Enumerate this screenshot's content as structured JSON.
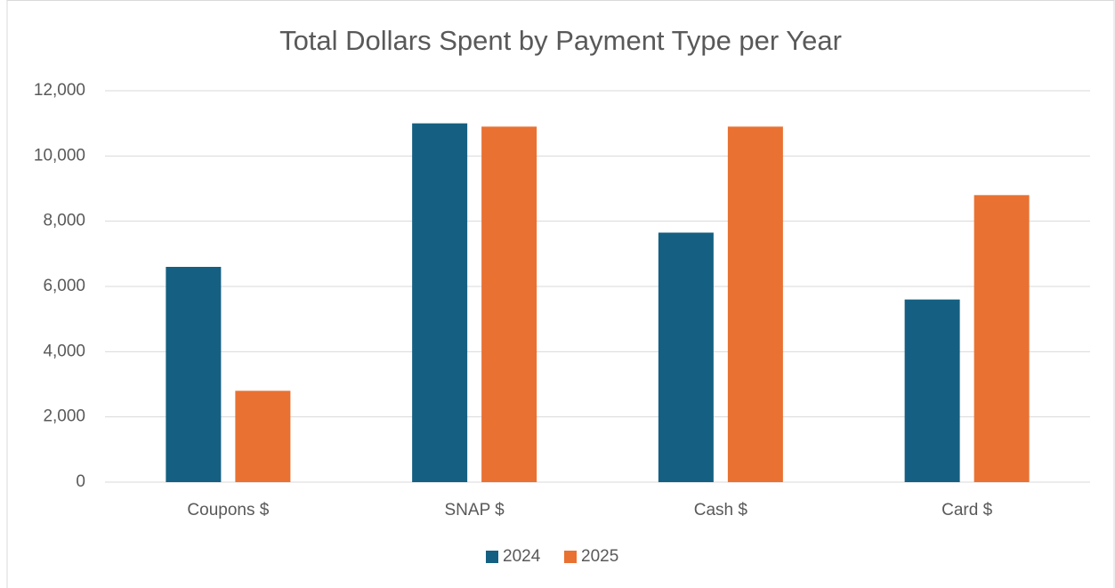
{
  "chart_data": {
    "type": "bar",
    "title": "Total Dollars Spent by Payment Type per Year",
    "categories": [
      "Coupons $",
      "SNAP $",
      "Cash $",
      "Card $"
    ],
    "series": [
      {
        "name": "2024",
        "color": "#156082",
        "values": [
          6600,
          11000,
          7650,
          5600
        ]
      },
      {
        "name": "2025",
        "color": "#e97132",
        "values": [
          2800,
          10900,
          10900,
          8800
        ]
      }
    ],
    "ylim": [
      0,
      12000
    ],
    "yticks": [
      0,
      {
        "value": 2000,
        "label": "2,000"
      },
      {
        "value": 4000,
        "label": "4,000"
      },
      {
        "value": 6000,
        "label": "6,000"
      },
      {
        "value": 8000,
        "label": "8,000"
      },
      {
        "value": 10000,
        "label": "10,000"
      },
      {
        "value": 12000,
        "label": "12,000"
      }
    ],
    "grid": true,
    "legend": "bottom"
  }
}
